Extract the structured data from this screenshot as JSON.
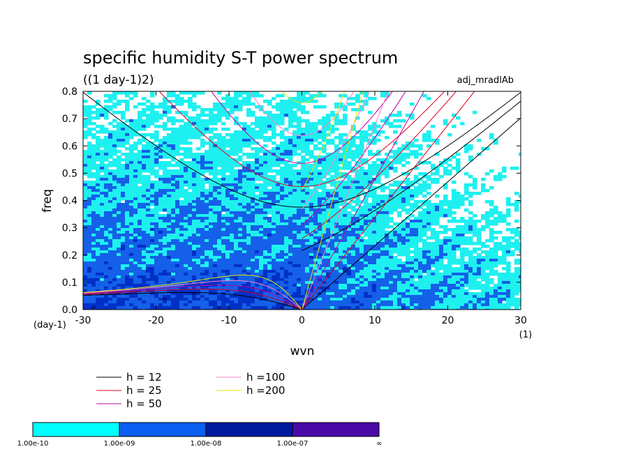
{
  "chart_data": {
    "type": "heatmap",
    "title": "specific humidity S-T power spectrum",
    "subtitle": "((1 day-1)2)",
    "run_label": "adj_mradlAb",
    "xlabel": "wvn",
    "ylabel": "freq",
    "x_unit": "(1)",
    "y_unit": "(day-1)",
    "xlim": [
      -30,
      30
    ],
    "ylim": [
      0,
      0.8
    ],
    "x_ticks": [
      -30,
      -20,
      -10,
      0,
      10,
      20,
      30
    ],
    "y_ticks": [
      0.0,
      0.1,
      0.2,
      0.3,
      0.4,
      0.5,
      0.6,
      0.7,
      0.8
    ],
    "x_tick_labels": [
      "-30",
      "-20",
      "-10",
      "0",
      "10",
      "20",
      "30"
    ],
    "y_tick_labels": [
      "0.0",
      "0.1",
      "0.2",
      "0.3",
      "0.4",
      "0.5",
      "0.6",
      "0.7",
      "0.8"
    ],
    "colorbar": {
      "colors": [
        "#00ffff",
        "#0a5ef0",
        "#001a9e",
        "#4a0aa8"
      ],
      "labels": [
        "1.00e-10",
        "1.00e-09",
        "1.00e-08",
        "1.00e-07",
        "∞"
      ]
    },
    "field_colors": [
      "#ffffff",
      "#1ef0f0",
      "#1460e8",
      "#0030c8",
      "#001a8c"
    ],
    "dispersion_curves": [
      {
        "name": "h = 12",
        "equivalent_depth": 12,
        "color": "#000000"
      },
      {
        "name": "h = 25",
        "equivalent_depth": 25,
        "color": "#e0001e"
      },
      {
        "name": "h = 50",
        "equivalent_depth": 50,
        "color": "#c000a0"
      },
      {
        "name": "h =100",
        "equivalent_depth": 100,
        "color": "#ff80c8"
      },
      {
        "name": "h =200",
        "equivalent_depth": 200,
        "color": "#e6e600"
      }
    ]
  }
}
